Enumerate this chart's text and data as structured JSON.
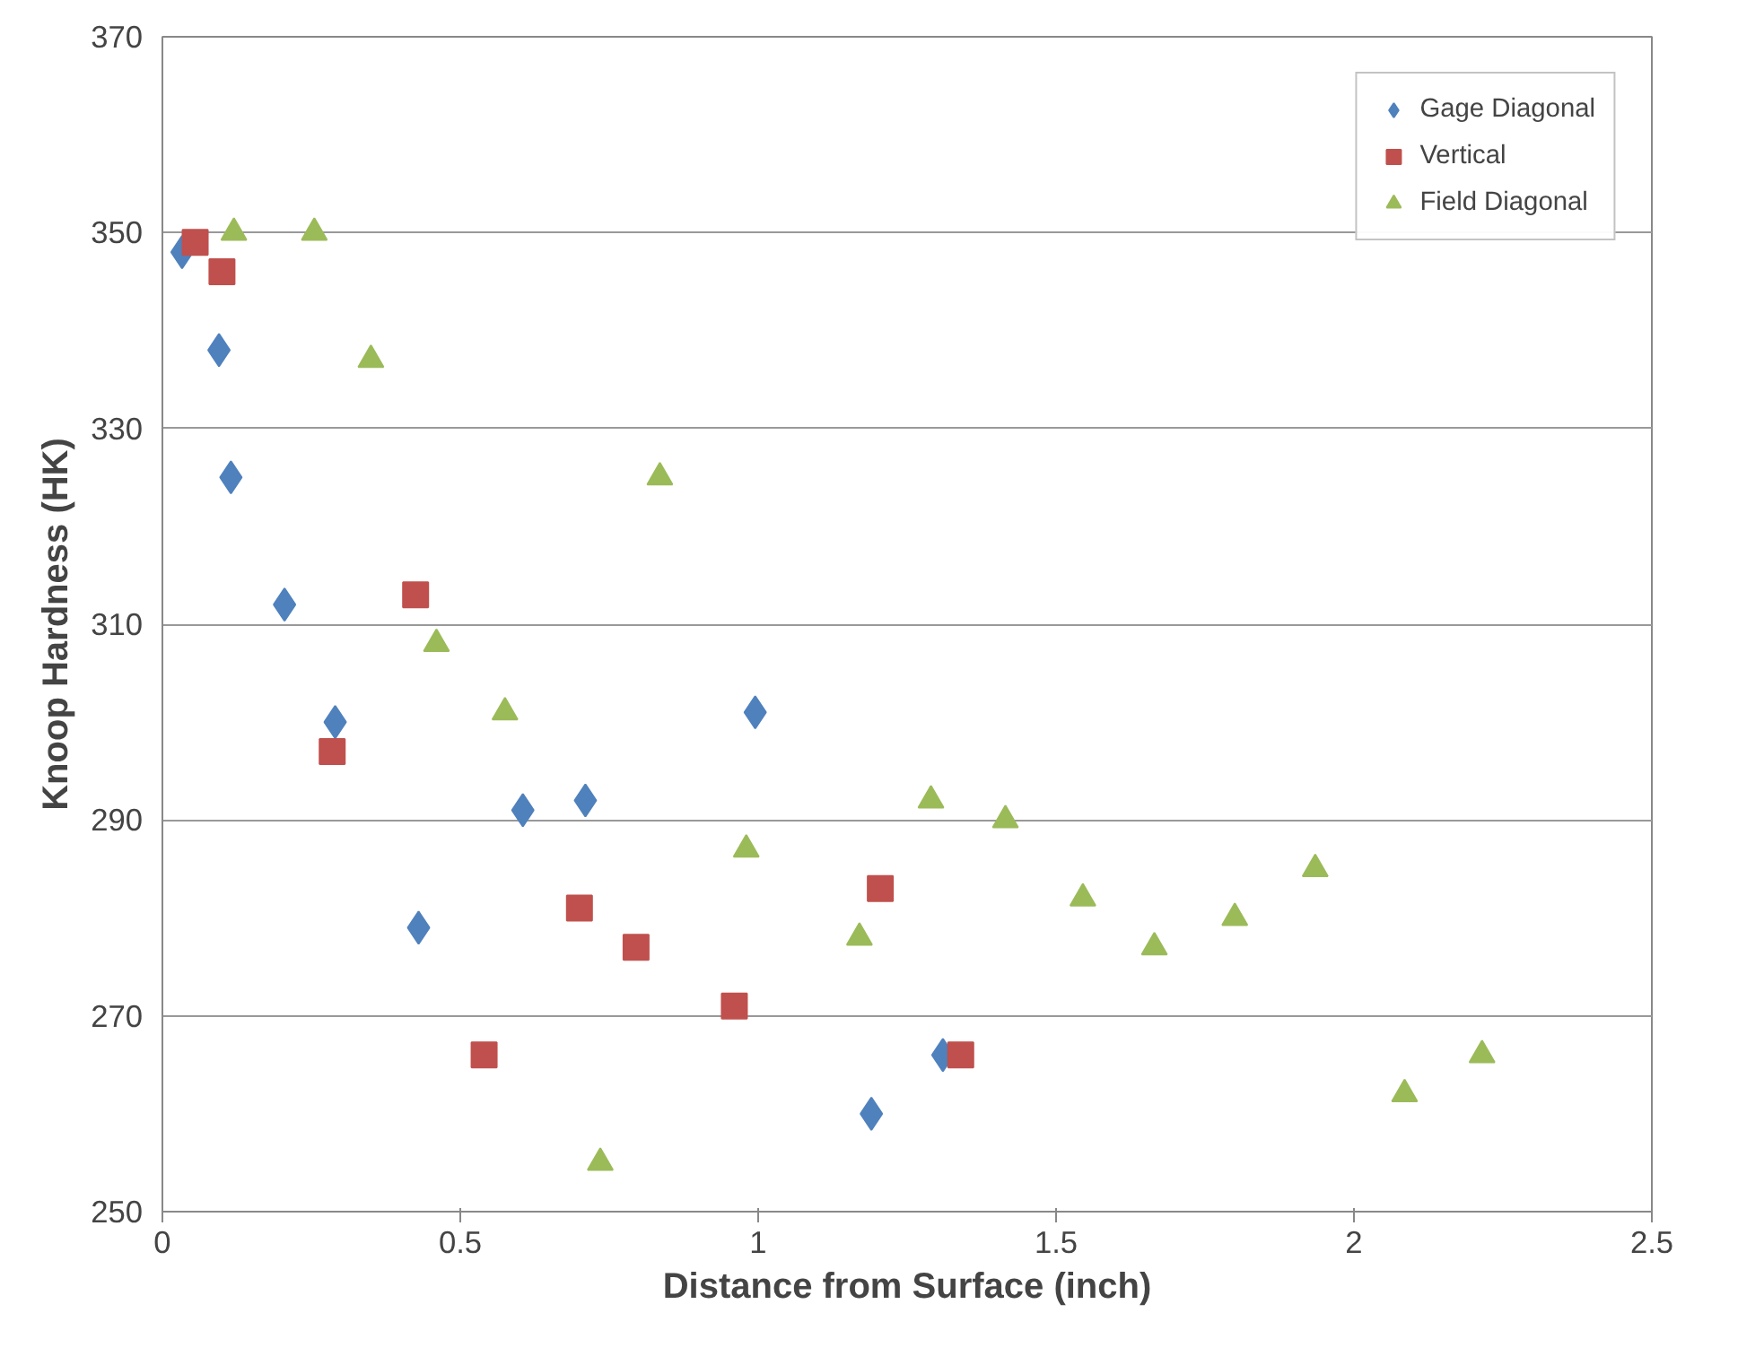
{
  "chart_data": {
    "type": "scatter",
    "xlabel": "Distance from Surface (inch)",
    "ylabel": "Knoop Hardness (HK)",
    "xlim": [
      0,
      2.5
    ],
    "ylim": [
      250,
      370
    ],
    "xticks": [
      0,
      0.5,
      1,
      1.5,
      2,
      2.5
    ],
    "yticks": [
      250,
      270,
      290,
      310,
      330,
      350,
      370
    ],
    "grid": "y",
    "legend": "top right",
    "series": [
      {
        "name": "Gage Diagonal",
        "color": "#4f81bd",
        "marker": "diamond",
        "x": [
          0.033,
          0.095,
          0.115,
          0.205,
          0.29,
          0.43,
          0.605,
          0.71,
          0.995,
          1.19,
          1.31
        ],
        "values": [
          348,
          338,
          325,
          312,
          300,
          279,
          291,
          292,
          301,
          260,
          266
        ]
      },
      {
        "name": "Vertical",
        "color": "#c0504d",
        "marker": "square",
        "x": [
          0.055,
          0.1,
          0.425,
          0.285,
          0.54,
          0.7,
          0.795,
          0.96,
          1.205,
          1.34
        ],
        "values": [
          349,
          346,
          313,
          297,
          266,
          281,
          277,
          271,
          283,
          266
        ]
      },
      {
        "name": "Field Diagonal",
        "color": "#9bbb59",
        "marker": "triangle",
        "x": [
          0.12,
          0.255,
          0.35,
          0.46,
          0.575,
          0.735,
          0.835,
          0.98,
          1.17,
          1.29,
          1.415,
          1.545,
          1.665,
          1.8,
          1.935,
          2.085,
          2.215
        ],
        "values": [
          350,
          350,
          337,
          308,
          301,
          255,
          325,
          287,
          278,
          292,
          290,
          282,
          277,
          280,
          285,
          262,
          266
        ]
      }
    ]
  }
}
